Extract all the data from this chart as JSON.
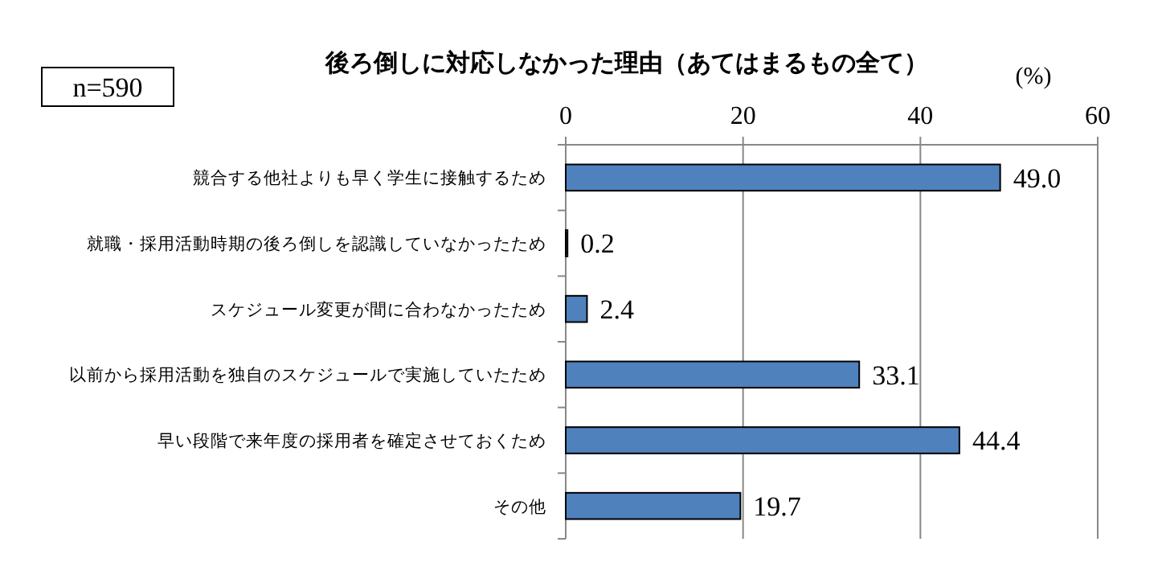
{
  "chart_data": {
    "type": "bar",
    "orientation": "horizontal",
    "title": "後ろ倒しに対応しなかった理由（あてはまるもの全て）",
    "xlabel": "(%)",
    "annotations": [
      "n=590"
    ],
    "categories": [
      "競合する他社よりも早く学生に接触するため",
      "就職・採用活動時期の後ろ倒しを認識していなかったため",
      "スケジュール変更が間に合わなかったため",
      "以前から採用活動を独自のスケジュールで実施していたため",
      "早い段階で来年度の採用者を確定させておくため",
      "その他"
    ],
    "values": [
      49.0,
      0.2,
      2.4,
      33.1,
      44.4,
      19.7
    ],
    "color": "#4f81bd",
    "value_labels": [
      "49.0",
      "0.2",
      "2.4",
      "33.1",
      "44.4",
      "19.7"
    ],
    "xlim": [
      0,
      60
    ],
    "xticks": [
      0,
      20,
      40,
      60
    ],
    "grid": "x"
  }
}
